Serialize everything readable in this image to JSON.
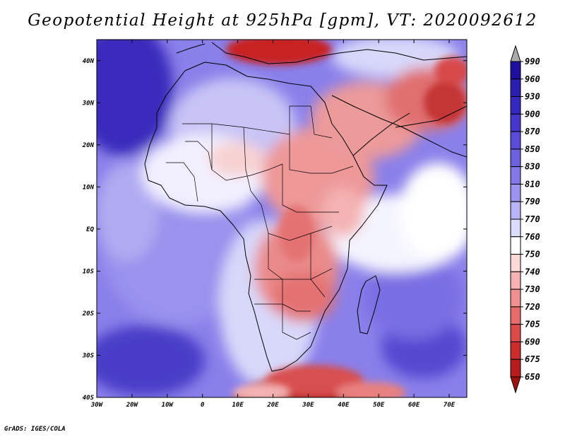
{
  "title": "Geopotential Height at 925hPa [gpm], VT: 2020092612",
  "credit": "GrADS: IGES/COLA",
  "map": {
    "lon_labels": [
      "30W",
      "20W",
      "10W",
      "0",
      "10E",
      "20E",
      "30E",
      "40E",
      "50E",
      "60E",
      "70E"
    ],
    "lat_labels": [
      "40N",
      "30N",
      "20N",
      "10N",
      "EQ",
      "10S",
      "20S",
      "30S",
      "40S"
    ],
    "lon_range": [
      -30,
      75
    ],
    "lat_range": [
      -40,
      45
    ]
  },
  "colorbar": {
    "levels": [
      990,
      960,
      930,
      900,
      870,
      850,
      830,
      810,
      790,
      770,
      760,
      750,
      740,
      730,
      720,
      705,
      690,
      675,
      650
    ],
    "colors": [
      "#aaaaaa",
      "#1f0f9f",
      "#2a1eb0",
      "#3428c0",
      "#4637cc",
      "#5a4bd8",
      "#6e61e0",
      "#8478e8",
      "#9d94f0",
      "#bab4f6",
      "#dcdcfc",
      "#ffffff",
      "#fcd9d9",
      "#f7b3b3",
      "#f19090",
      "#e86b6b",
      "#dd4a4a",
      "#cd2c2c",
      "#b71c1c",
      "#a01010"
    ],
    "colors_note_under": "#a01010"
  },
  "palette": {
    "ocean_deep": "#4a3cc8",
    "ocean_mid": "#7a6ee4",
    "ocean_light": "#a8a2f0",
    "pale_blue": "#d8d8fa",
    "white": "#ffffff",
    "pink": "#f4b2b2",
    "red": "#e06a6a",
    "deep_red": "#c01818"
  }
}
